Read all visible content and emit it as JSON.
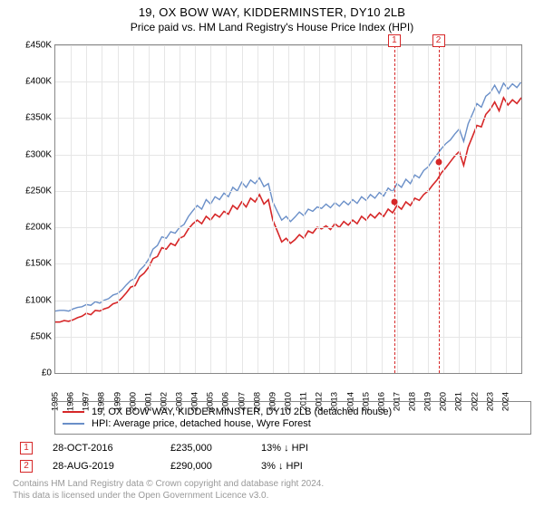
{
  "title_line1": "19, OX BOW WAY, KIDDERMINSTER, DY10 2LB",
  "title_line2": "Price paid vs. HM Land Registry's House Price Index (HPI)",
  "chart": {
    "type": "line",
    "background_color": "#ffffff",
    "grid_color": "#e6e6e6",
    "axis_color": "#888888",
    "ylim": [
      0,
      450000
    ],
    "ytick_step": 50000,
    "yticks": [
      "£0",
      "£50K",
      "£100K",
      "£150K",
      "£200K",
      "£250K",
      "£300K",
      "£350K",
      "£400K",
      "£450K"
    ],
    "x_start_year": 1995,
    "x_end_year": 2025,
    "xticks": [
      "1995",
      "1996",
      "1997",
      "1998",
      "1999",
      "2000",
      "2001",
      "2002",
      "2003",
      "2004",
      "2005",
      "2006",
      "2007",
      "2008",
      "2009",
      "2010",
      "2011",
      "2012",
      "2013",
      "2014",
      "2015",
      "2016",
      "2017",
      "2018",
      "2019",
      "2020",
      "2021",
      "2022",
      "2023",
      "2024"
    ],
    "label_fontsize": 10,
    "series": [
      {
        "name": "property",
        "color": "#d62728",
        "width": 1.6,
        "y": [
          70,
          70,
          72,
          71,
          73,
          76,
          78,
          82,
          80,
          86,
          85,
          88,
          90,
          95,
          97,
          103,
          110,
          118,
          120,
          132,
          137,
          145,
          157,
          160,
          172,
          170,
          178,
          175,
          185,
          188,
          198,
          205,
          210,
          205,
          215,
          210,
          218,
          214,
          222,
          218,
          230,
          225,
          235,
          228,
          240,
          235,
          245,
          232,
          238,
          210,
          195,
          180,
          185,
          178,
          183,
          190,
          185,
          195,
          192,
          200,
          198,
          202,
          197,
          205,
          200,
          208,
          203,
          210,
          205,
          215,
          210,
          218,
          213,
          220,
          215,
          225,
          220,
          230,
          225,
          235,
          230,
          240,
          237,
          245,
          250,
          258,
          265,
          275,
          282,
          290,
          298,
          304,
          285,
          310,
          325,
          340,
          338,
          355,
          362,
          372,
          360,
          378,
          368,
          375,
          370,
          378
        ]
      },
      {
        "name": "hpi",
        "color": "#6a8fc8",
        "width": 1.4,
        "y": [
          85,
          86,
          86,
          85,
          88,
          90,
          91,
          94,
          93,
          98,
          96,
          100,
          102,
          107,
          109,
          114,
          121,
          127,
          130,
          141,
          147,
          156,
          170,
          175,
          187,
          185,
          194,
          192,
          200,
          204,
          215,
          223,
          230,
          225,
          238,
          232,
          242,
          238,
          247,
          242,
          255,
          250,
          262,
          255,
          265,
          260,
          268,
          256,
          260,
          235,
          222,
          210,
          215,
          208,
          214,
          221,
          216,
          225,
          222,
          228,
          226,
          232,
          227,
          234,
          229,
          236,
          231,
          238,
          233,
          242,
          237,
          245,
          240,
          248,
          243,
          254,
          249,
          260,
          255,
          266,
          260,
          272,
          268,
          278,
          283,
          292,
          300,
          308,
          315,
          320,
          328,
          335,
          318,
          342,
          356,
          370,
          365,
          380,
          385,
          395,
          384,
          398,
          390,
          397,
          392,
          400
        ]
      }
    ],
    "markers": [
      {
        "idx": "1",
        "year": 2016.82,
        "value": 235000,
        "box_top_offset": -12
      },
      {
        "idx": "2",
        "year": 2019.66,
        "value": 290000,
        "box_top_offset": -12
      }
    ],
    "marker_box_border": "#d62728",
    "marker_dot_color": "#d62728"
  },
  "legend": {
    "items": [
      {
        "color": "#d62728",
        "label": "19, OX BOW WAY, KIDDERMINSTER, DY10 2LB (detached house)"
      },
      {
        "color": "#6a8fc8",
        "label": "HPI: Average price, detached house, Wyre Forest"
      }
    ]
  },
  "transactions": [
    {
      "idx": "1",
      "date": "28-OCT-2016",
      "price": "£235,000",
      "delta": "13% ↓ HPI"
    },
    {
      "idx": "2",
      "date": "28-AUG-2019",
      "price": "£290,000",
      "delta": "3% ↓ HPI"
    }
  ],
  "license": [
    "Contains HM Land Registry data © Crown copyright and database right 2024.",
    "This data is licensed under the Open Government Licence v3.0."
  ]
}
